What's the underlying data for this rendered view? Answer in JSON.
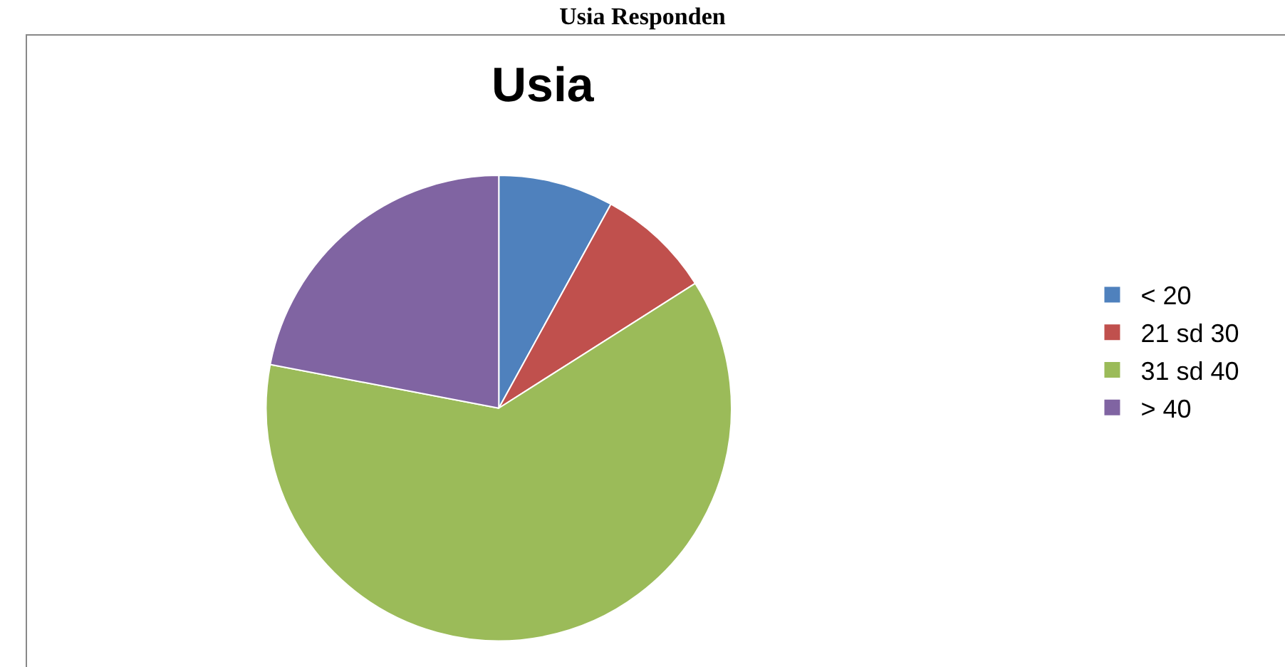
{
  "chart_data": {
    "type": "pie",
    "title": "Usia Responden",
    "subtitle": "Usia",
    "categories": [
      "< 20",
      "21 sd 30",
      "31 sd 40",
      "> 40"
    ],
    "values": [
      8,
      8,
      62,
      22
    ],
    "colors": [
      "#4f81bd",
      "#c0504d",
      "#9bbb59",
      "#8064a2"
    ],
    "legend": "right"
  }
}
